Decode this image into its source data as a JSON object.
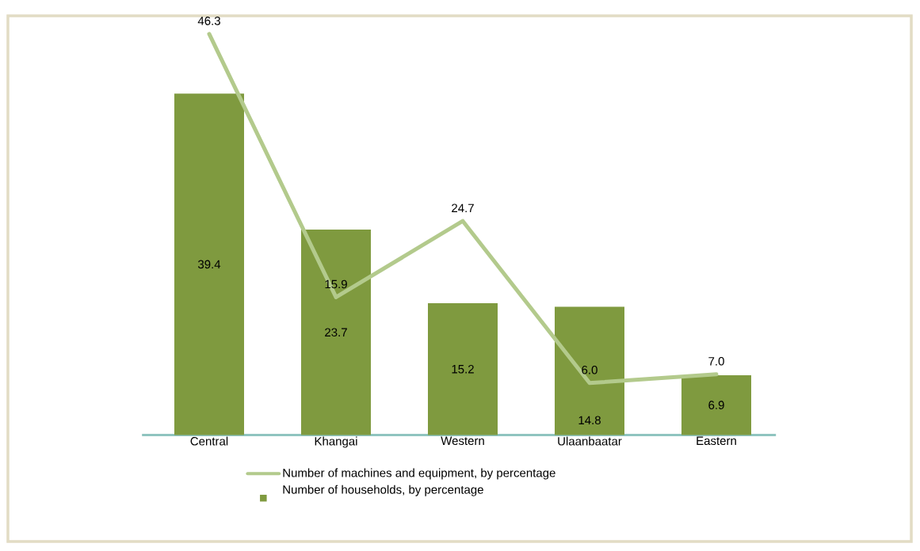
{
  "chart_data": {
    "type": "bar",
    "categories": [
      "Central",
      "Khangai",
      "Western",
      "Ulaanbaatar",
      "Eastern"
    ],
    "series": [
      {
        "name": "Number of households, by percentage",
        "color": "#7f9a3f",
        "values": [
          39.4,
          23.7,
          15.2,
          14.8,
          6.9
        ],
        "value_labels": [
          "39.4",
          "23.7",
          "15.2",
          "14.8",
          "6.9"
        ]
      },
      {
        "name": "Number of machines and equipment, by percentage",
        "type": "line",
        "color": "#b3ca8c",
        "values": [
          46.3,
          15.9,
          24.7,
          6.0,
          7.0
        ],
        "value_labels": [
          "46.3",
          "15.9",
          "24.7",
          "6.0",
          "7.0"
        ]
      }
    ],
    "legend": "bottom",
    "marker": "none",
    "line_style": "solid"
  }
}
